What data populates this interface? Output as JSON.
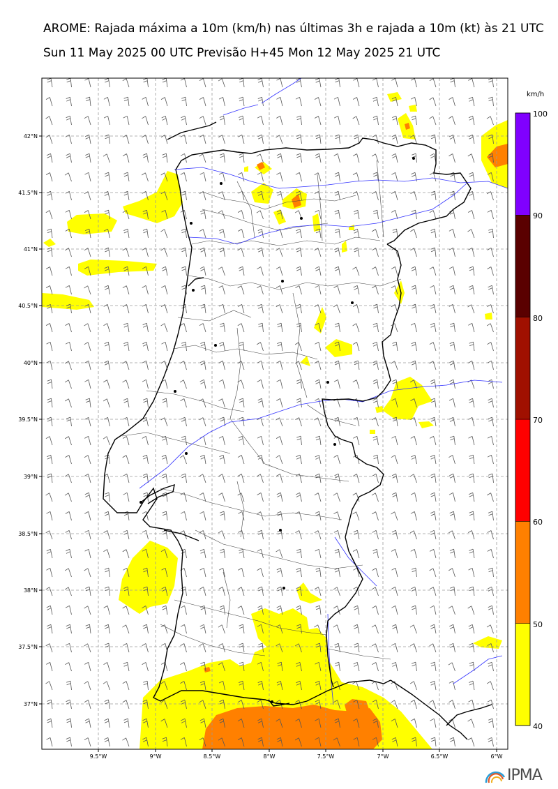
{
  "header": {
    "title_line1": "AROME: Rajada máxima a 10m (km/h) nas últimas 3h e rajada a 10m (kt) às 21 UTC",
    "title_line2": "Sun 11 May 2025 00 UTC Previsão H+45 Mon 12 May 2025 21 UTC"
  },
  "map": {
    "lat_ticks": [
      "42°N",
      "41.5°N",
      "41°N",
      "40.5°N",
      "40°N",
      "39.5°N",
      "39°N",
      "38.5°N",
      "38°N",
      "37.5°N",
      "37°N"
    ],
    "lon_ticks": [
      "9.5°W",
      "9°W",
      "8.5°W",
      "8°W",
      "7.5°W",
      "7°W",
      "6.5°W",
      "6°W"
    ],
    "extent": {
      "lon_min": -10.0,
      "lon_max": -5.92,
      "lat_min": 36.6,
      "lat_max": 42.5
    },
    "wind_barb_direction": "north-northeast",
    "colors": {
      "coast": "#000000",
      "rivers": "#3333ff",
      "districts": "#444444",
      "grid": "#9a9a9a",
      "barbs": "#555555"
    }
  },
  "colorbar": {
    "unit": "km/h",
    "levels": [
      "40",
      "50",
      "60",
      "70",
      "80",
      "90",
      "100"
    ],
    "colors": [
      "#ffff00",
      "#ff8000",
      "#ff0000",
      "#a01000",
      "#5a0000",
      "#8000ff"
    ]
  },
  "logo": {
    "text": "IPMA"
  }
}
